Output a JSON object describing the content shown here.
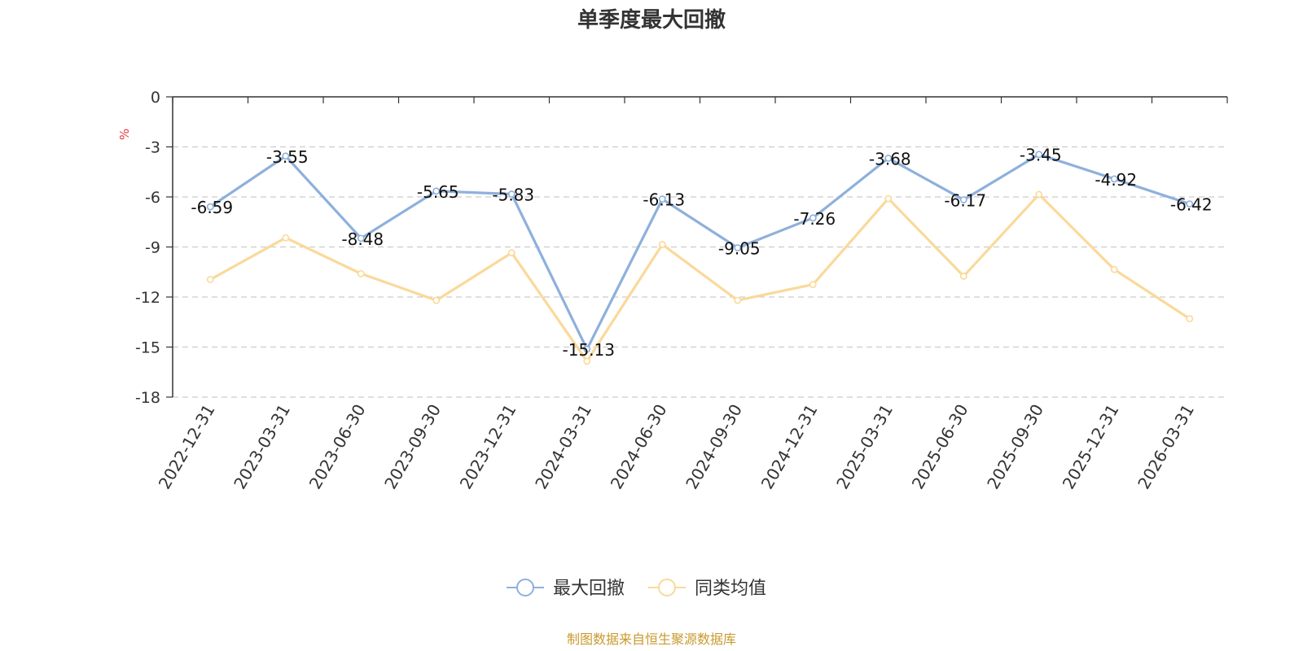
{
  "chart_data": {
    "type": "line",
    "title": "单季度最大回撤",
    "ylabel": "%",
    "ylim": [
      -18,
      0
    ],
    "yticks": [
      0,
      -3,
      -6,
      -9,
      -12,
      -15,
      -18
    ],
    "grid": true,
    "legend_position": "bottom",
    "categories": [
      "2022-12-31",
      "2023-03-31",
      "2023-06-30",
      "2023-09-30",
      "2023-12-31",
      "2024-03-31",
      "2024-06-30",
      "2024-09-30",
      "2024-12-31",
      "2025-03-31",
      "2025-06-30",
      "2025-09-30",
      "2025-12-31",
      "2026-03-31"
    ],
    "series": [
      {
        "name": "最大回撤",
        "color": "#8eb0dc",
        "values": [
          -6.59,
          -3.55,
          -8.48,
          -5.65,
          -5.83,
          -15.13,
          -6.13,
          -9.05,
          -7.26,
          -3.68,
          -6.17,
          -3.45,
          -4.92,
          -6.42
        ],
        "labels": [
          "-6.59",
          "-3.55",
          "-8.48",
          "-5.65",
          "-5.83",
          "-15.13",
          "-6.13",
          "-9.05",
          "-7.26",
          "-3.68",
          "-6.17",
          "-3.45",
          "-4.92",
          "-6.42"
        ]
      },
      {
        "name": "同类均值",
        "color": "#fad99a",
        "values": [
          -10.95,
          -8.45,
          -10.6,
          -12.2,
          -9.35,
          -15.85,
          -8.85,
          -12.2,
          -11.25,
          -6.1,
          -10.75,
          -5.85,
          -10.35,
          -13.3
        ]
      }
    ]
  },
  "source_text": "制图数据来自恒生聚源数据库",
  "colors": {
    "unit": "#e63b3b",
    "source": "#c99a2e",
    "grid": "#cccccc",
    "axis": "#333333"
  }
}
